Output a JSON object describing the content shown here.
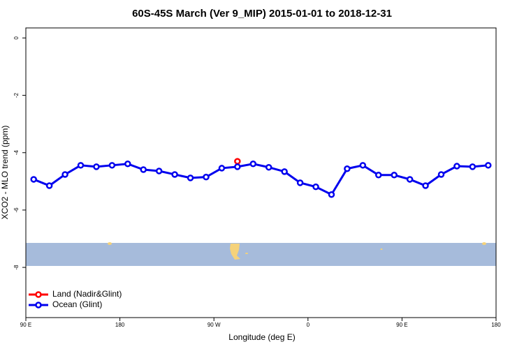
{
  "chart_data": {
    "type": "line",
    "title": "60S-45S March (Ver 9_MIP)   2015-01-01 to 2018-12-31",
    "x_label": "Longitude (deg E)",
    "y_label": "XCO2 - MLO trend (ppm)",
    "x": [
      97.5,
      112.5,
      127.5,
      142.5,
      157.5,
      172.5,
      187.5,
      202.5,
      217.5,
      232.5,
      247.5,
      262.5,
      277.5,
      292.5,
      307.5,
      322.5,
      337.5,
      352.5,
      367.5,
      382.5,
      397.5,
      412.5,
      427.5,
      442.5,
      457.5,
      472.5,
      487.5,
      502.5,
      517.5,
      532.5
    ],
    "series": [
      {
        "name": "Land (Nadir&Glint)",
        "color": "#ff0000",
        "values": [
          null,
          null,
          null,
          null,
          null,
          null,
          null,
          null,
          null,
          null,
          null,
          null,
          null,
          -4.3,
          null,
          null,
          null,
          null,
          null,
          null,
          null,
          null,
          null,
          null,
          null,
          null,
          null,
          null,
          null,
          null
        ]
      },
      {
        "name": "Ocean (Glint)",
        "color": "#0000ee",
        "values": [
          -4.93,
          -5.15,
          -4.76,
          -4.44,
          -4.49,
          -4.44,
          -4.39,
          -4.59,
          -4.64,
          -4.76,
          -4.88,
          -4.85,
          -4.54,
          -4.49,
          -4.39,
          -4.51,
          -4.66,
          -5.05,
          -5.19,
          -5.46,
          -4.56,
          -4.44,
          -4.78,
          -4.78,
          -4.93,
          -5.15,
          -4.76,
          -4.47,
          -4.49,
          -4.44
        ]
      }
    ],
    "xlim": [
      90,
      540
    ],
    "xticks": [
      {
        "value": 90,
        "label": "90 E"
      },
      {
        "value": 180,
        "label": "180"
      },
      {
        "value": 270,
        "label": "90 W"
      },
      {
        "value": 360,
        "label": "0"
      },
      {
        "value": 450,
        "label": "90 E"
      },
      {
        "value": 540,
        "label": "180"
      }
    ],
    "ylim": [
      -9.75,
      0.35
    ],
    "yticks": [
      0,
      -2,
      -4,
      -6,
      -8
    ],
    "legend": "bottom-left"
  }
}
